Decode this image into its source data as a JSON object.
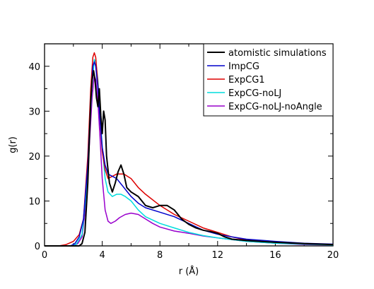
{
  "chart_data": {
    "type": "line",
    "title": "",
    "xlabel": "r (Å)",
    "ylabel": "g(r)",
    "xlim": [
      0,
      20
    ],
    "ylim": [
      0,
      45
    ],
    "xticks": [
      0,
      4,
      8,
      12,
      16,
      20
    ],
    "yticks": [
      0,
      10,
      20,
      30,
      40
    ],
    "xtick_labels": [
      "0",
      "4",
      "8",
      "12",
      "16",
      "20"
    ],
    "ytick_labels": [
      "0",
      "10",
      "20",
      "30",
      "40"
    ],
    "grid": false,
    "legend_position": "top-right",
    "series": [
      {
        "name": "atomistic simulations",
        "color": "#000000",
        "points": [
          [
            0,
            0
          ],
          [
            2.4,
            0
          ],
          [
            2.6,
            0.5
          ],
          [
            2.8,
            3
          ],
          [
            3.0,
            14
          ],
          [
            3.2,
            32
          ],
          [
            3.3,
            37
          ],
          [
            3.4,
            39
          ],
          [
            3.5,
            37
          ],
          [
            3.6,
            33
          ],
          [
            3.7,
            31
          ],
          [
            3.8,
            35
          ],
          [
            3.9,
            29
          ],
          [
            4.0,
            25
          ],
          [
            4.1,
            30
          ],
          [
            4.2,
            28
          ],
          [
            4.3,
            20
          ],
          [
            4.5,
            14
          ],
          [
            4.7,
            12
          ],
          [
            4.9,
            14
          ],
          [
            5.1,
            16.5
          ],
          [
            5.3,
            18
          ],
          [
            5.5,
            16
          ],
          [
            5.7,
            13
          ],
          [
            6.0,
            12
          ],
          [
            6.5,
            11
          ],
          [
            7.0,
            9
          ],
          [
            7.5,
            8.5
          ],
          [
            8.0,
            9
          ],
          [
            8.5,
            9
          ],
          [
            9.0,
            8
          ],
          [
            9.5,
            6
          ],
          [
            10,
            4.8
          ],
          [
            10.5,
            4
          ],
          [
            11,
            3.5
          ],
          [
            11.5,
            3.2
          ],
          [
            12,
            2.8
          ],
          [
            12.5,
            2
          ],
          [
            13,
            1.5
          ],
          [
            14,
            1.2
          ],
          [
            16,
            0.8
          ],
          [
            18,
            0.5
          ],
          [
            20,
            0.3
          ]
        ]
      },
      {
        "name": "ImpCG",
        "color": "#0000cc",
        "points": [
          [
            0,
            0
          ],
          [
            1.8,
            0
          ],
          [
            2.1,
            0.5
          ],
          [
            2.4,
            2
          ],
          [
            2.7,
            6
          ],
          [
            3.0,
            18
          ],
          [
            3.2,
            32
          ],
          [
            3.35,
            40
          ],
          [
            3.45,
            41
          ],
          [
            3.55,
            40
          ],
          [
            3.7,
            35
          ],
          [
            3.85,
            28
          ],
          [
            4.0,
            22
          ],
          [
            4.2,
            18
          ],
          [
            4.4,
            16
          ],
          [
            4.7,
            15.5
          ],
          [
            5.0,
            15
          ],
          [
            5.5,
            13
          ],
          [
            6.0,
            11
          ],
          [
            6.5,
            9.5
          ],
          [
            7.0,
            8.5
          ],
          [
            8.0,
            7.5
          ],
          [
            9.0,
            6.5
          ],
          [
            10,
            5
          ],
          [
            11,
            3.5
          ],
          [
            12,
            2.6
          ],
          [
            13,
            2
          ],
          [
            14,
            1.5
          ],
          [
            16,
            1
          ],
          [
            18,
            0.6
          ],
          [
            20,
            0.4
          ]
        ]
      },
      {
        "name": "ExpCG1",
        "color": "#dd0000",
        "points": [
          [
            0,
            0
          ],
          [
            1.0,
            0
          ],
          [
            1.5,
            0.3
          ],
          [
            2.0,
            1
          ],
          [
            2.4,
            2.5
          ],
          [
            2.7,
            6
          ],
          [
            3.0,
            20
          ],
          [
            3.2,
            35
          ],
          [
            3.35,
            42
          ],
          [
            3.45,
            43
          ],
          [
            3.55,
            42
          ],
          [
            3.7,
            36
          ],
          [
            3.85,
            28
          ],
          [
            4.0,
            21
          ],
          [
            4.2,
            17
          ],
          [
            4.4,
            15
          ],
          [
            4.7,
            15.5
          ],
          [
            5.0,
            16
          ],
          [
            5.5,
            16
          ],
          [
            6.0,
            15
          ],
          [
            6.5,
            13
          ],
          [
            7.0,
            11.5
          ],
          [
            8.0,
            9
          ],
          [
            9.0,
            7
          ],
          [
            10,
            5.5
          ],
          [
            11,
            4
          ],
          [
            12,
            3
          ],
          [
            13,
            2
          ],
          [
            14,
            1.3
          ],
          [
            16,
            0.8
          ],
          [
            18,
            0.5
          ],
          [
            20,
            0.3
          ]
        ]
      },
      {
        "name": "ExpCG-noLJ",
        "color": "#00dddd",
        "points": [
          [
            0,
            0
          ],
          [
            1.8,
            0
          ],
          [
            2.2,
            0.4
          ],
          [
            2.6,
            2.5
          ],
          [
            2.9,
            12
          ],
          [
            3.1,
            25
          ],
          [
            3.3,
            36
          ],
          [
            3.45,
            41.5
          ],
          [
            3.55,
            41
          ],
          [
            3.7,
            37
          ],
          [
            3.85,
            30
          ],
          [
            4.0,
            22
          ],
          [
            4.2,
            15
          ],
          [
            4.4,
            12
          ],
          [
            4.7,
            11
          ],
          [
            5.0,
            11.5
          ],
          [
            5.3,
            11.5
          ],
          [
            5.6,
            11
          ],
          [
            6.0,
            10
          ],
          [
            6.5,
            8
          ],
          [
            7.0,
            6.5
          ],
          [
            8.0,
            5
          ],
          [
            9.0,
            4
          ],
          [
            10,
            3
          ],
          [
            11,
            2.3
          ],
          [
            12,
            1.8
          ],
          [
            14,
            1
          ],
          [
            16,
            0.6
          ],
          [
            18,
            0.4
          ],
          [
            20,
            0.2
          ]
        ]
      },
      {
        "name": "ExpCG-noLJ-noAngle",
        "color": "#9900cc",
        "points": [
          [
            0,
            0
          ],
          [
            2.0,
            0
          ],
          [
            2.3,
            0.5
          ],
          [
            2.6,
            2
          ],
          [
            2.9,
            10
          ],
          [
            3.1,
            22
          ],
          [
            3.3,
            33
          ],
          [
            3.45,
            38
          ],
          [
            3.55,
            37
          ],
          [
            3.7,
            32
          ],
          [
            3.85,
            24
          ],
          [
            4.0,
            15
          ],
          [
            4.2,
            8
          ],
          [
            4.4,
            5.5
          ],
          [
            4.6,
            5
          ],
          [
            4.9,
            5.5
          ],
          [
            5.2,
            6.3
          ],
          [
            5.6,
            7
          ],
          [
            6.0,
            7.3
          ],
          [
            6.5,
            7
          ],
          [
            7.0,
            6
          ],
          [
            7.5,
            5
          ],
          [
            8.0,
            4.2
          ],
          [
            9.0,
            3.3
          ],
          [
            10,
            2.8
          ],
          [
            11,
            2.2
          ],
          [
            12,
            1.8
          ],
          [
            14,
            1
          ],
          [
            16,
            0.6
          ],
          [
            18,
            0.3
          ],
          [
            20,
            0.2
          ]
        ]
      }
    ]
  }
}
